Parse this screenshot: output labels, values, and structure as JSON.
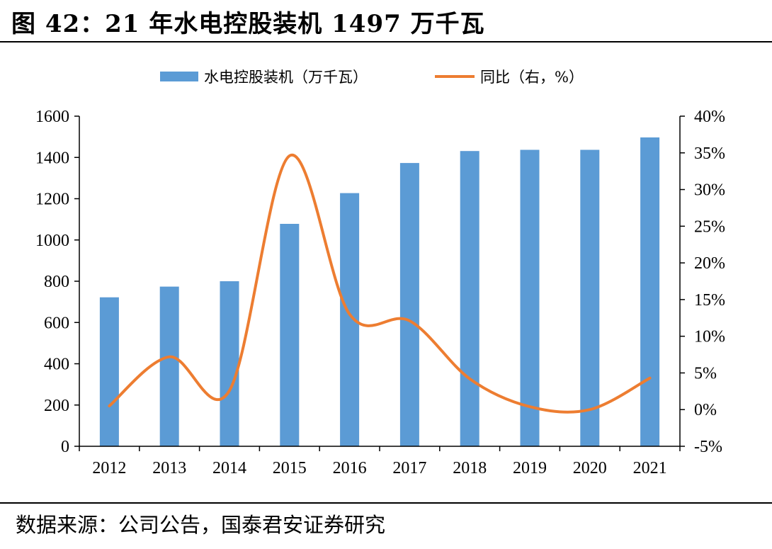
{
  "title": "图 42：21 年水电控股装机 1497 万千瓦",
  "source": "数据来源：公司公告，国泰君安证券研究",
  "colors": {
    "bar": "#5b9bd5",
    "line": "#ed7d31",
    "axis": "#000000"
  },
  "chart_data": {
    "type": "bar+line",
    "categories": [
      "2012",
      "2013",
      "2014",
      "2015",
      "2016",
      "2017",
      "2018",
      "2019",
      "2020",
      "2021"
    ],
    "series": [
      {
        "name": "水电控股装机（万千瓦）",
        "type": "bar",
        "axis": "left",
        "values": [
          722,
          774,
          800,
          1078,
          1227,
          1373,
          1431,
          1437,
          1437,
          1497
        ]
      },
      {
        "name": "同比（右，%）",
        "type": "line",
        "axis": "right",
        "smooth": true,
        "values": [
          0.5,
          7.2,
          2.6,
          34.6,
          13.0,
          12.1,
          4.2,
          0.4,
          0.0,
          4.3
        ]
      }
    ],
    "y_left": {
      "min": 0,
      "max": 1600,
      "step": 200,
      "tick_labels": [
        "0",
        "200",
        "400",
        "600",
        "800",
        "1000",
        "1200",
        "1400",
        "1600"
      ]
    },
    "y_right": {
      "min": -5,
      "max": 40,
      "step": 5,
      "tick_labels": [
        "-5%",
        "0%",
        "5%",
        "10%",
        "15%",
        "20%",
        "25%",
        "30%",
        "35%",
        "40%"
      ]
    },
    "grid": false,
    "legend_position": "top-center"
  }
}
